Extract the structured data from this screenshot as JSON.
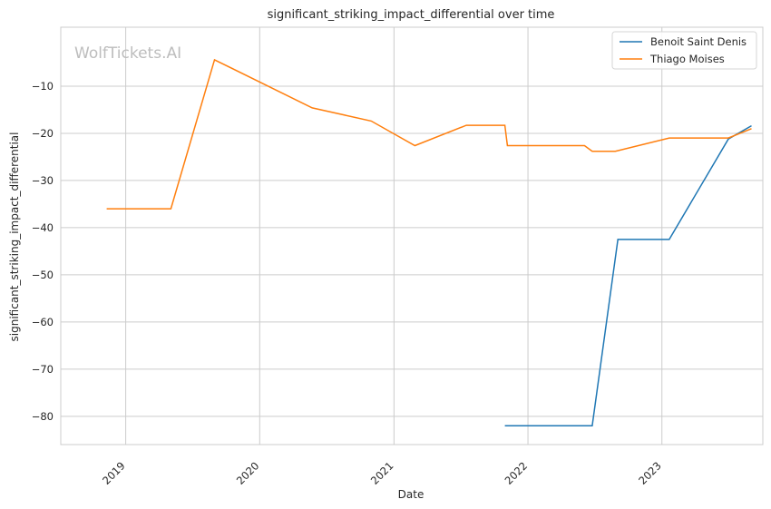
{
  "chart_data": {
    "type": "line",
    "title": "significant_striking_impact_differential over time",
    "xlabel": "Date",
    "ylabel": "significant_striking_impact_differential",
    "watermark": "WolfTickets.AI",
    "x_ticks": [
      "2019",
      "2020",
      "2021",
      "2022",
      "2023"
    ],
    "y_ticks": [
      -80,
      -70,
      -60,
      -50,
      -40,
      -30,
      -20,
      -10
    ],
    "xlim": [
      "2018-07-08",
      "2023-10-03"
    ],
    "ylim": [
      -86,
      2.5
    ],
    "grid": true,
    "legend_position": "top-right",
    "series": [
      {
        "name": "Benoit Saint Denis",
        "color": "#1f77b4",
        "points": [
          [
            "2021-10-30",
            -82
          ],
          [
            "2022-06-25",
            -82
          ],
          [
            "2022-09-03",
            -42.5
          ],
          [
            "2023-01-21",
            -42.5
          ],
          [
            "2023-07-01",
            -21.2
          ],
          [
            "2023-09-02",
            -18.4
          ]
        ]
      },
      {
        "name": "Thiago Moises",
        "color": "#ff7f0e",
        "points": [
          [
            "2018-11-10",
            -36
          ],
          [
            "2019-05-04",
            -36
          ],
          [
            "2019-08-31",
            -4.4
          ],
          [
            "2020-05-23",
            -14.6
          ],
          [
            "2020-10-31",
            -17.4
          ],
          [
            "2021-02-27",
            -22.6
          ],
          [
            "2021-07-17",
            -18.3
          ],
          [
            "2021-10-30",
            -18.3
          ],
          [
            "2021-11-06",
            -22.6
          ],
          [
            "2022-06-04",
            -22.6
          ],
          [
            "2022-06-25",
            -23.8
          ],
          [
            "2022-08-27",
            -23.8
          ],
          [
            "2023-01-21",
            -21
          ],
          [
            "2023-07-01",
            -21
          ],
          [
            "2023-09-02",
            -19
          ]
        ]
      }
    ]
  }
}
